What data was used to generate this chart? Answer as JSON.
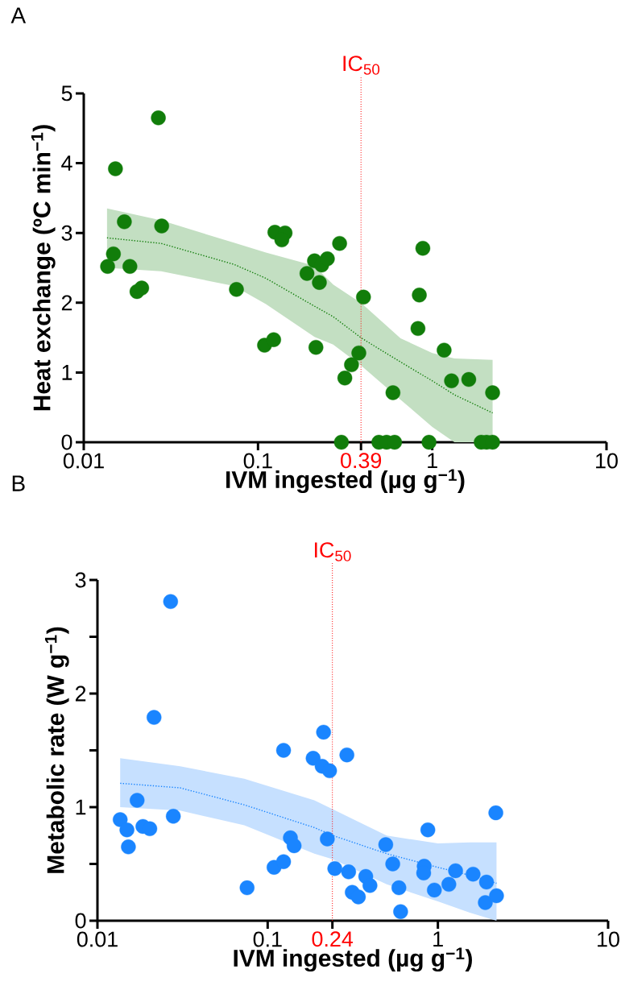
{
  "chart_data": [
    {
      "type": "scatter",
      "title": "A",
      "xlabel": "IVM ingested (µg g$^{−1}$)",
      "ylabel": "Heat exchange (ºC min$^{−1}$)",
      "log": "x",
      "xlim": [
        0.01,
        10
      ],
      "xticks": [
        0.01,
        0.1,
        1,
        10,
        {
          "value": 0.39,
          "label": null
        }
      ],
      "ylim": [
        0,
        5
      ],
      "yticks": [
        0,
        1,
        2,
        3,
        4,
        5
      ],
      "ref_lines": [
        {
          "axis": "x",
          "value": 0.39,
          "label": "IC$_{50}$",
          "color": "#ff0000",
          "line_style": "dotted"
        }
      ],
      "annotations": [
        {
          "text": "0.39",
          "x": 0.39,
          "y": 0
        }
      ],
      "series": [
        {
          "type": "line",
          "color": "#117d0a",
          "line_style": "dotted",
          "marker": "none",
          "x": [
            0.0136,
            0.0278,
            0.0727,
            0.111,
            0.211,
            0.27,
            0.394,
            0.658,
            1.0,
            1.34,
            2.22
          ],
          "values": [
            2.93,
            2.85,
            2.55,
            2.35,
            1.95,
            1.8,
            1.49,
            1.15,
            0.88,
            0.68,
            0.42
          ],
          "upper": [
            3.35,
            3.18,
            2.86,
            2.72,
            2.53,
            2.26,
            1.99,
            1.49,
            1.28,
            1.2,
            1.18
          ],
          "lower": [
            2.5,
            2.45,
            2.24,
            1.98,
            1.51,
            1.4,
            1.09,
            0.61,
            0.22,
            0,
            0
          ]
        },
        {
          "type": "scatter",
          "color": "#117d0a",
          "marker": "circle",
          "x": [
            0.0268,
            0.0152,
            0.0171,
            0.028,
            0.0148,
            0.0137,
            0.0184,
            0.0202,
            0.0215,
            0.0752,
            0.125,
            0.143,
            0.137,
            0.109,
            0.123,
            0.191,
            0.211,
            0.232,
            0.25,
            0.225,
            0.215,
            0.294,
            0.403,
            0.379,
            0.344,
            0.315,
            0.301,
            0.494,
            0.547,
            0.608,
            0.595,
            0.883,
            0.843,
            0.828,
            0.958,
            1.17,
            1.29,
            1.62,
            1.91,
            2.05,
            2.22,
            2.22
          ],
          "values": [
            4.65,
            3.92,
            3.16,
            3.1,
            2.7,
            2.52,
            2.52,
            2.16,
            2.21,
            2.19,
            3.01,
            3.0,
            2.9,
            1.39,
            1.47,
            2.42,
            2.6,
            2.54,
            2.63,
            2.29,
            1.36,
            2.85,
            2.08,
            1.28,
            1.11,
            0.92,
            0,
            0,
            0,
            0,
            0.71,
            2.78,
            2.11,
            1.63,
            0,
            1.32,
            0.88,
            0.9,
            0,
            0,
            0,
            0.71
          ]
        }
      ]
    },
    {
      "type": "scatter",
      "title": "B",
      "xlabel": "IVM ingested (µg g$^{−1}$)",
      "ylabel": "Metabolic rate (W g$^{−1}$)",
      "log": "x",
      "xlim": [
        0.01,
        10
      ],
      "xticks": [
        0.01,
        0.1,
        1,
        10,
        {
          "value": 0.24,
          "label": null
        }
      ],
      "ylim": [
        0,
        3
      ],
      "yticks": [
        0,
        {
          "value": 0.5,
          "label": null
        },
        1,
        {
          "value": 1.5,
          "label": null
        },
        2,
        {
          "value": 2.5,
          "label": null
        },
        3
      ],
      "ref_lines": [
        {
          "axis": "x",
          "value": 0.24,
          "label": "IC$_{50}$",
          "color": "#ff0000",
          "line_style": "dotted"
        }
      ],
      "annotations": [
        {
          "text": "0.24",
          "x": 0.24,
          "y": 0
        }
      ],
      "series": [
        {
          "type": "line",
          "color": "#1a85ff",
          "line_style": "dotted",
          "marker": "none",
          "x": [
            0.0136,
            0.0306,
            0.0729,
            0.188,
            0.242,
            0.5,
            1.0,
            1.54,
            2.21
          ],
          "values": [
            1.21,
            1.17,
            1.02,
            0.82,
            0.75,
            0.59,
            0.47,
            0.4,
            0.33
          ],
          "upper": [
            1.43,
            1.36,
            1.25,
            1.06,
            0.98,
            0.75,
            0.68,
            0.69,
            0.69
          ],
          "lower": [
            1.0,
            0.97,
            0.84,
            0.59,
            0.54,
            0.32,
            0.17,
            0.07,
            0
          ]
        },
        {
          "type": "scatter",
          "color": "#1a85ff",
          "marker": "circle",
          "x": [
            0.0269,
            0.0215,
            0.0171,
            0.0136,
            0.0149,
            0.0152,
            0.0185,
            0.0203,
            0.0279,
            0.0757,
            0.109,
            0.124,
            0.124,
            0.136,
            0.143,
            0.185,
            0.213,
            0.209,
            0.231,
            0.292,
            0.224,
            0.248,
            0.299,
            0.314,
            0.341,
            0.377,
            0.399,
            0.494,
            0.543,
            0.59,
            0.604,
            0.873,
            0.831,
            0.825,
            0.953,
            1.16,
            1.27,
            1.61,
            1.93,
            1.9,
            2.19,
            2.21
          ],
          "values": [
            2.81,
            1.79,
            1.06,
            0.89,
            0.8,
            0.65,
            0.83,
            0.81,
            0.92,
            0.29,
            0.47,
            0.52,
            1.5,
            0.73,
            0.66,
            1.43,
            1.66,
            1.36,
            1.32,
            1.46,
            0.72,
            0.46,
            0.43,
            0.25,
            0.21,
            0.39,
            0.31,
            0.67,
            0.5,
            0.29,
            0.08,
            0.8,
            0.48,
            0.42,
            0.27,
            0.32,
            0.44,
            0.41,
            0.34,
            0.16,
            0.95,
            0.22
          ]
        }
      ]
    }
  ]
}
